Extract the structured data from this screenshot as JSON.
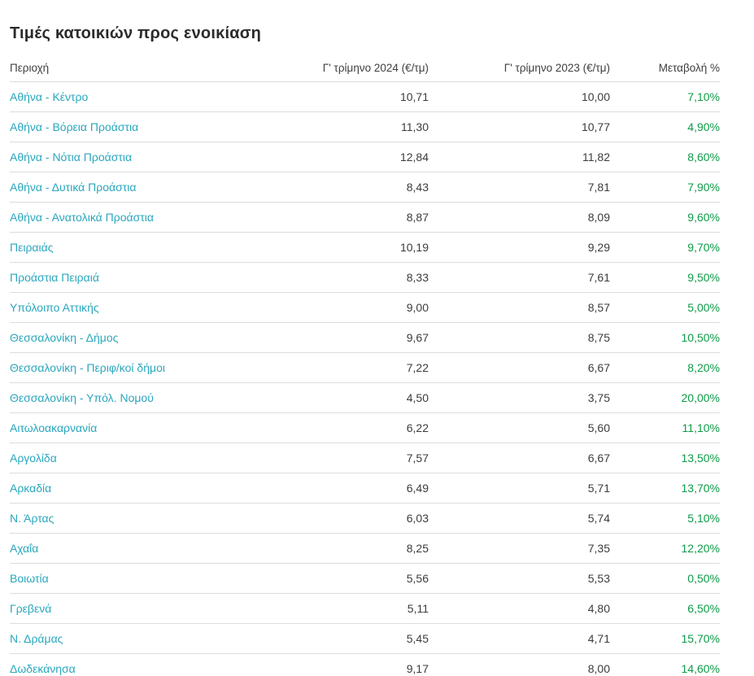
{
  "page": {
    "title": "Τιμές κατοικιών προς ενοικίαση"
  },
  "colors": {
    "region_link": "#2aa7bd",
    "change_positive": "#0e9b48",
    "value_text": "#3c3c3c",
    "title_text": "#2b2b2b",
    "row_border": "#dcdcdc"
  },
  "table": {
    "columns": [
      "Περιοχή",
      "Γ' τρίμηνο 2024 (€/τμ)",
      "Γ' τρίμηνο 2023 (€/τμ)",
      "Μεταβολή %"
    ],
    "rows": [
      {
        "region": "Αθήνα - Κέντρο",
        "q3_2024": "10,71",
        "q3_2023": "10,00",
        "change": "7,10%"
      },
      {
        "region": "Αθήνα - Βόρεια Προάστια",
        "q3_2024": "11,30",
        "q3_2023": "10,77",
        "change": "4,90%"
      },
      {
        "region": "Αθήνα - Νότια Προάστια",
        "q3_2024": "12,84",
        "q3_2023": "11,82",
        "change": "8,60%"
      },
      {
        "region": "Αθήνα - Δυτικά Προάστια",
        "q3_2024": "8,43",
        "q3_2023": "7,81",
        "change": "7,90%"
      },
      {
        "region": "Αθήνα - Ανατολικά Προάστια",
        "q3_2024": "8,87",
        "q3_2023": "8,09",
        "change": "9,60%"
      },
      {
        "region": "Πειραιάς",
        "q3_2024": "10,19",
        "q3_2023": "9,29",
        "change": "9,70%"
      },
      {
        "region": "Προάστια Πειραιά",
        "q3_2024": "8,33",
        "q3_2023": "7,61",
        "change": "9,50%"
      },
      {
        "region": "Υπόλοιπο Αττικής",
        "q3_2024": "9,00",
        "q3_2023": "8,57",
        "change": "5,00%"
      },
      {
        "region": "Θεσσαλονίκη - Δήμος",
        "q3_2024": "9,67",
        "q3_2023": "8,75",
        "change": "10,50%"
      },
      {
        "region": "Θεσσαλονίκη - Περιφ/κοί δήμοι",
        "q3_2024": "7,22",
        "q3_2023": "6,67",
        "change": "8,20%"
      },
      {
        "region": "Θεσσαλονίκη - Υπόλ. Νομού",
        "q3_2024": "4,50",
        "q3_2023": "3,75",
        "change": "20,00%"
      },
      {
        "region": "Αιτωλοακαρνανία",
        "q3_2024": "6,22",
        "q3_2023": "5,60",
        "change": "11,10%"
      },
      {
        "region": "Αργολίδα",
        "q3_2024": "7,57",
        "q3_2023": "6,67",
        "change": "13,50%"
      },
      {
        "region": "Αρκαδία",
        "q3_2024": "6,49",
        "q3_2023": "5,71",
        "change": "13,70%"
      },
      {
        "region": "Ν. Άρτας",
        "q3_2024": "6,03",
        "q3_2023": "5,74",
        "change": "5,10%"
      },
      {
        "region": "Αχαΐα",
        "q3_2024": "8,25",
        "q3_2023": "7,35",
        "change": "12,20%"
      },
      {
        "region": "Βοιωτία",
        "q3_2024": "5,56",
        "q3_2023": "5,53",
        "change": "0,50%"
      },
      {
        "region": "Γρεβενά",
        "q3_2024": "5,11",
        "q3_2023": "4,80",
        "change": "6,50%"
      },
      {
        "region": "Ν. Δράμας",
        "q3_2024": "5,45",
        "q3_2023": "4,71",
        "change": "15,70%"
      },
      {
        "region": "Δωδεκάνησα",
        "q3_2024": "9,17",
        "q3_2023": "8,00",
        "change": "14,60%"
      }
    ]
  }
}
